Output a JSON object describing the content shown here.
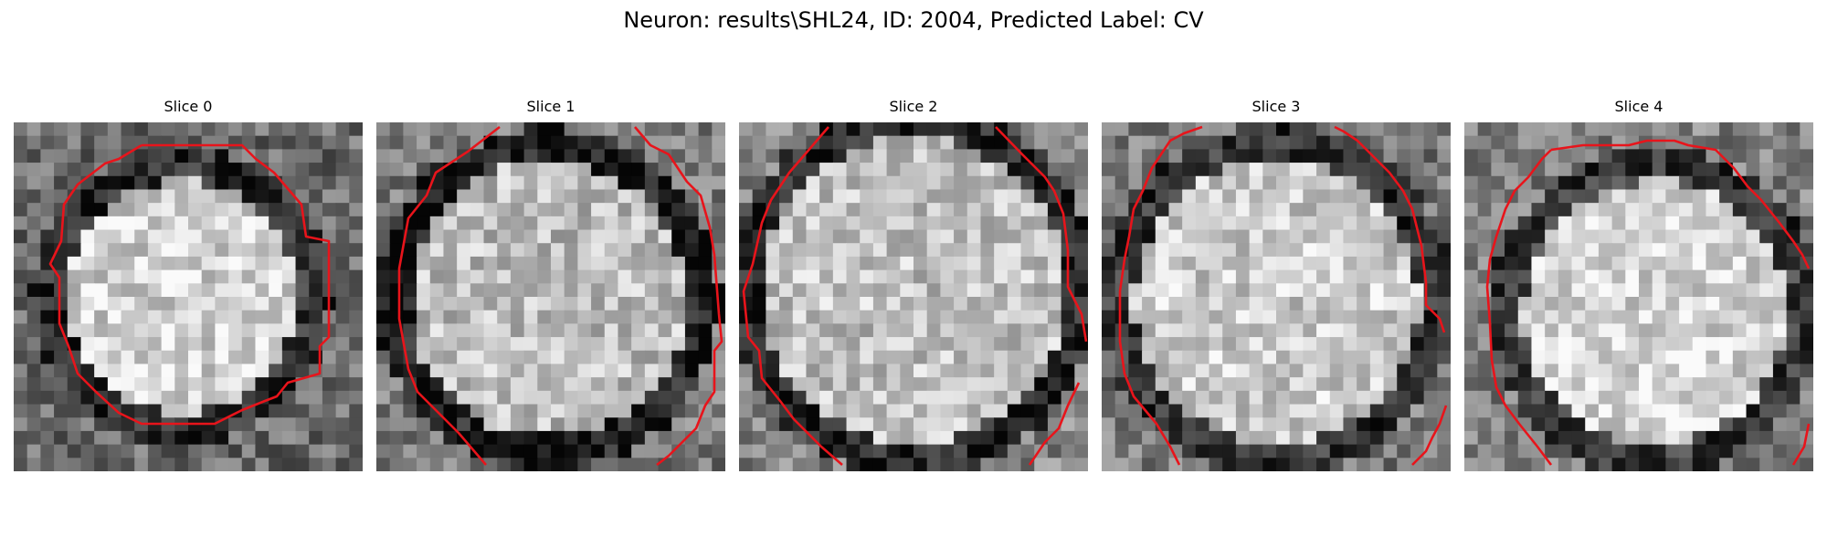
{
  "figure": {
    "title": "Neuron: results\\SHL24, ID: 2004, Predicted Label: CV"
  },
  "panels": [
    {
      "title": "Slice 0"
    },
    {
      "title": "Slice 1"
    },
    {
      "title": "Slice 2"
    },
    {
      "title": "Slice 3"
    },
    {
      "title": "Slice 4"
    }
  ],
  "colors": {
    "background": "#ffffff",
    "contour": "#e8141b",
    "text": "#000000"
  },
  "images": {
    "description_kind": "grayscale noisy microscopy tiles with red segmentation contours",
    "grid": [
      26,
      26
    ]
  }
}
